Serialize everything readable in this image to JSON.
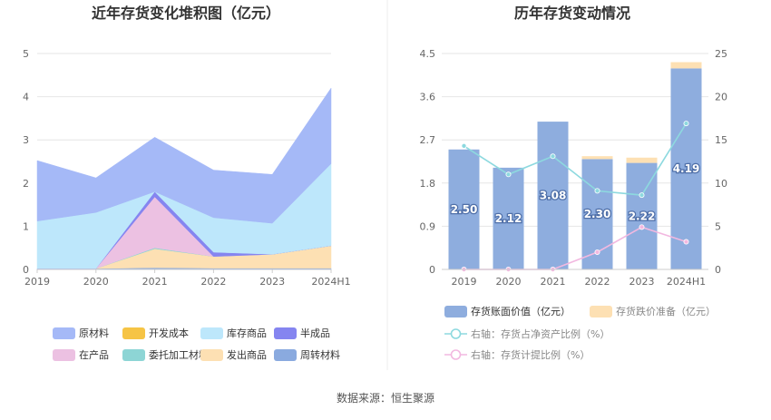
{
  "source": "数据来源：恒生聚源",
  "chart_data": [
    {
      "type": "area",
      "stacked": true,
      "title": "近年存货变化堆积图（亿元）",
      "categories": [
        "2019",
        "2020",
        "2021",
        "2022",
        "2023",
        "2024H1"
      ],
      "ylim": [
        0,
        5
      ],
      "yticks": [
        "0",
        "1",
        "2",
        "3",
        "4",
        "5"
      ],
      "series": [
        {
          "name": "周转材料",
          "color": "#8aaadf",
          "values": [
            0.02,
            0.02,
            0.04,
            0.03,
            0.03,
            0.03
          ]
        },
        {
          "name": "发出商品",
          "color": "#fde0b3",
          "values": [
            0.0,
            0.0,
            0.44,
            0.27,
            0.32,
            0.52
          ]
        },
        {
          "name": "委托加工材料",
          "color": "#8dd5d5",
          "values": [
            0.0,
            0.0,
            0.02,
            0.0,
            0.0,
            0.0
          ]
        },
        {
          "name": "在产品",
          "color": "#ecc1e2",
          "values": [
            0.0,
            0.0,
            1.18,
            0.0,
            0.0,
            0.0
          ]
        },
        {
          "name": "半成品",
          "color": "#8585f0",
          "values": [
            0.0,
            0.0,
            0.12,
            0.1,
            0.0,
            0.0
          ]
        },
        {
          "name": "库存商品",
          "color": "#bde7fb",
          "values": [
            1.1,
            1.3,
            0.0,
            0.8,
            0.72,
            1.9
          ]
        },
        {
          "name": "开发成本",
          "color": "#f6c445",
          "values": [
            0.0,
            0.0,
            0.0,
            0.0,
            0.0,
            0.0
          ]
        },
        {
          "name": "原材料",
          "color": "#a5b9f7",
          "values": [
            1.4,
            0.8,
            1.26,
            1.1,
            1.13,
            1.75
          ]
        }
      ],
      "legend": [
        [
          "原材料",
          "开发成本",
          "库存商品",
          "半成品"
        ],
        [
          "在产品",
          "委托加工材料",
          "发出商品",
          "周转材料"
        ]
      ]
    },
    {
      "type": "bar",
      "title": "历年存货变动情况",
      "categories": [
        "2019",
        "2020",
        "2021",
        "2022",
        "2023",
        "2024H1"
      ],
      "ylim": [
        0,
        4.5
      ],
      "yticks": [
        "0",
        "0.9",
        "1.8",
        "2.7",
        "3.6",
        "4.5"
      ],
      "y2lim": [
        0,
        25
      ],
      "y2ticks": [
        "0",
        "5",
        "10",
        "15",
        "20",
        "25"
      ],
      "series": [
        {
          "name": "存货账面价值（亿元）",
          "kind": "bar",
          "color": "#8eadde",
          "values": [
            2.5,
            2.12,
            3.08,
            2.3,
            2.22,
            4.19
          ],
          "labels": [
            "2.50",
            "2.12",
            "3.08",
            "2.30",
            "2.22",
            "4.19"
          ]
        },
        {
          "name": "存货跌价准备（亿元）",
          "kind": "bar-stack",
          "color": "#fde0b3",
          "values": [
            0.0,
            0.0,
            0.0,
            0.06,
            0.11,
            0.13
          ]
        },
        {
          "name": "右轴：存货占净资产比例（%）",
          "kind": "line",
          "axis": "right",
          "color": "#8dd9df",
          "values": [
            14.3,
            11.0,
            13.1,
            9.1,
            8.6,
            16.9
          ]
        },
        {
          "name": "右轴：存货计提比例（%）",
          "kind": "line",
          "axis": "right",
          "color": "#f2b8e0",
          "values": [
            0.0,
            0.0,
            0.0,
            2.0,
            4.9,
            3.2
          ]
        }
      ]
    }
  ]
}
